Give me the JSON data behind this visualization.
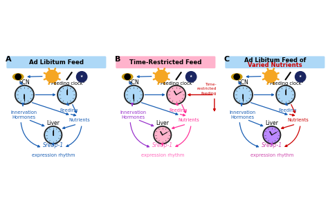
{
  "panels": [
    {
      "label": "A",
      "title": "Ad Libitum Feed",
      "title_bg": "#add8f7",
      "title_color": "black",
      "blue": "#1a5fb4",
      "innervation_color": "#1a5fb4",
      "feeding_color": "#1a5fb4",
      "nutrients_color": "#1a5fb4",
      "srebp_color": "#1a5fb4",
      "liver_clock_color": "#add8f7",
      "feeding_clock_color": "#add8f7",
      "scn_clock_color": "#add8f7",
      "has_trf": false,
      "trf_color": null,
      "liver_arrow_color": "#1a5fb4",
      "innervation_to_srebp_color": "#1a5fb4",
      "nutrients_to_srebp_color": "#1a5fb4"
    },
    {
      "label": "B",
      "title": "Time-Restricted Feed",
      "title_bg": "#ffb3cc",
      "title_color": "black",
      "blue": "#1a5fb4",
      "innervation_color": "#9933cc",
      "feeding_color": "#ff3399",
      "nutrients_color": "#ff3399",
      "srebp_color": "#ff66bb",
      "liver_clock_color": "#ffb3cc",
      "feeding_clock_color": "#ffb3cc",
      "scn_clock_color": "#add8f7",
      "has_trf": true,
      "trf_color": "#cc0000",
      "liver_arrow_color": "#ff3399",
      "innervation_to_srebp_color": "#9933cc",
      "nutrients_to_srebp_color": "#ff3399"
    },
    {
      "label": "C",
      "title_line1": "Ad Libitum Feed of",
      "title_line2": "Varied Nutrients",
      "title_bg": "#add8f7",
      "title_color": "black",
      "title_line2_color": "#cc0000",
      "blue": "#1a5fb4",
      "innervation_color": "#1a5fb4",
      "feeding_color": "#1a5fb4",
      "nutrients_color": "#cc0000",
      "srebp_color": "#cc44aa",
      "liver_clock_color": "#bb88ff",
      "feeding_clock_color": "#add8f7",
      "scn_clock_color": "#add8f7",
      "has_trf": false,
      "trf_color": null,
      "liver_arrow_color": "#bb44cc",
      "innervation_to_srebp_color": "#1a5fb4",
      "nutrients_to_srebp_color": "#cc0000"
    }
  ]
}
